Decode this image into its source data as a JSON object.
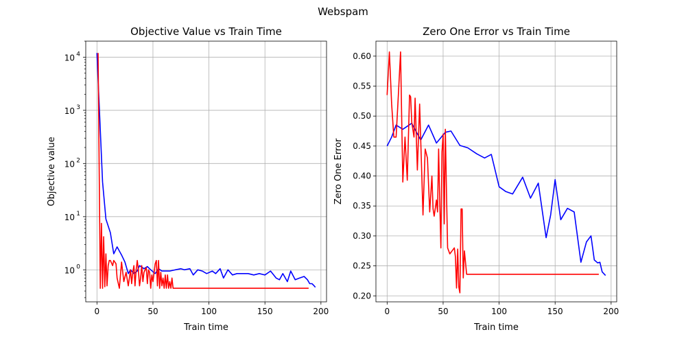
{
  "figure": {
    "title": "Webspam"
  },
  "chart_data": [
    {
      "type": "line",
      "title": "Objective Value vs Train Time",
      "xlabel": "Train time",
      "ylabel": "Objective value",
      "yscale": "log",
      "xlim": [
        -10,
        205
      ],
      "ylim": [
        0.25,
        20000
      ],
      "xticks": [
        0,
        50,
        100,
        150,
        200
      ],
      "xtick_labels": [
        "0",
        "50",
        "100",
        "150",
        "200"
      ],
      "yticks": [
        1,
        10,
        100,
        1000,
        10000
      ],
      "ytick_labels": [
        [
          "10",
          "0"
        ],
        [
          "10",
          "1"
        ],
        [
          "10",
          "2"
        ],
        [
          "10",
          "3"
        ],
        [
          "10",
          "4"
        ]
      ],
      "grid": true,
      "series": [
        {
          "color": "#0000ff",
          "x": [
            0,
            5,
            8,
            12,
            15,
            18,
            22,
            25,
            28,
            30,
            33,
            36,
            38,
            42,
            45,
            48,
            52,
            55,
            58,
            62,
            65,
            70,
            75,
            78,
            83,
            86,
            90,
            94,
            98,
            103,
            106,
            110,
            113,
            117,
            121,
            125,
            130,
            135,
            140,
            145,
            150,
            155,
            160,
            163,
            166,
            170,
            173,
            177,
            181,
            185,
            188,
            190,
            192,
            194,
            195
          ],
          "y": [
            12000,
            45,
            9,
            5,
            2,
            2.7,
            1.9,
            1.4,
            0.85,
            1.0,
            0.85,
            0.95,
            1.2,
            1.05,
            1.15,
            1.0,
            0.85,
            1.05,
            0.95,
            0.95,
            0.95,
            1.0,
            1.05,
            1.0,
            1.05,
            0.8,
            1.0,
            0.95,
            0.85,
            0.95,
            0.85,
            1.05,
            0.7,
            1.0,
            0.8,
            0.85,
            0.85,
            0.85,
            0.8,
            0.85,
            0.8,
            0.95,
            0.7,
            0.65,
            0.85,
            0.6,
            0.95,
            0.65,
            0.7,
            0.75,
            0.65,
            0.55,
            0.55,
            0.5,
            0.47
          ]
        },
        {
          "color": "#ff0000",
          "x": [
            1,
            3,
            4,
            5,
            6,
            7,
            8,
            9,
            10,
            11,
            12,
            14,
            15,
            17,
            18,
            20,
            22,
            24,
            26,
            28,
            30,
            31,
            32,
            33,
            34,
            35,
            36,
            37,
            38,
            39,
            40,
            41,
            42,
            44,
            45,
            46,
            47,
            48,
            49,
            50,
            52,
            53,
            54,
            55,
            56,
            57,
            58,
            59,
            60,
            61,
            62,
            63,
            64,
            65,
            66,
            67,
            68,
            70,
            80,
            100,
            130,
            160,
            189
          ],
          "y": [
            12000,
            0.45,
            7.5,
            0.45,
            4.2,
            0.48,
            2,
            0.5,
            1.2,
            1.5,
            1.5,
            1.2,
            1.5,
            1.3,
            0.7,
            0.45,
            1.4,
            0.6,
            0.9,
            0.5,
            1.0,
            0.55,
            0.9,
            1.2,
            0.5,
            1.0,
            1.5,
            1.0,
            0.5,
            0.7,
            1.2,
            0.6,
            0.9,
            1.1,
            0.55,
            1.0,
            0.9,
            0.45,
            0.8,
            0.6,
            1.3,
            1.5,
            0.5,
            1.5,
            0.45,
            0.9,
            0.5,
            0.7,
            0.45,
            0.8,
            0.45,
            0.8,
            0.45,
            0.6,
            0.45,
            0.7,
            0.45,
            0.45,
            0.45,
            0.45,
            0.45,
            0.45,
            0.45
          ]
        }
      ]
    },
    {
      "type": "line",
      "title": "Zero One Error vs Train Time",
      "xlabel": "Train time",
      "ylabel": "Zero One Error",
      "yscale": "linear",
      "xlim": [
        -10,
        205
      ],
      "ylim": [
        0.19,
        0.625
      ],
      "xticks": [
        0,
        50,
        100,
        150,
        200
      ],
      "xtick_labels": [
        "0",
        "50",
        "100",
        "150",
        "200"
      ],
      "yticks": [
        0.2,
        0.25,
        0.3,
        0.35,
        0.4,
        0.45,
        0.5,
        0.55,
        0.6
      ],
      "ytick_labels": [
        "0.20",
        "0.25",
        "0.30",
        "0.35",
        "0.40",
        "0.45",
        "0.50",
        "0.55",
        "0.60"
      ],
      "grid": true,
      "series": [
        {
          "color": "#0000ff",
          "x": [
            0,
            4,
            8,
            14,
            22,
            30,
            37,
            44,
            52,
            57,
            65,
            72,
            80,
            87,
            93,
            100,
            106,
            112,
            121,
            128,
            135,
            142,
            146,
            150,
            155,
            161,
            167,
            173,
            178,
            182,
            185,
            188,
            190,
            192,
            195
          ],
          "y": [
            0.45,
            0.465,
            0.485,
            0.478,
            0.488,
            0.46,
            0.485,
            0.455,
            0.473,
            0.475,
            0.451,
            0.447,
            0.437,
            0.43,
            0.436,
            0.382,
            0.374,
            0.37,
            0.398,
            0.363,
            0.388,
            0.297,
            0.335,
            0.394,
            0.327,
            0.346,
            0.34,
            0.256,
            0.29,
            0.3,
            0.26,
            0.255,
            0.256,
            0.24,
            0.234
          ]
        },
        {
          "color": "#ff0000",
          "x": [
            0,
            2,
            4,
            6,
            8,
            10,
            12,
            13,
            14,
            16,
            18,
            20,
            21,
            22,
            24,
            25,
            27,
            29,
            31,
            32,
            34,
            36,
            38,
            40,
            41,
            42,
            44,
            45,
            46,
            47,
            48,
            49,
            50,
            51,
            52,
            53,
            54,
            55,
            56,
            58,
            60,
            61,
            62,
            63,
            64,
            65,
            66,
            67,
            68,
            69,
            71,
            73,
            80,
            100,
            130,
            160,
            189
          ],
          "y": [
            0.535,
            0.607,
            0.52,
            0.465,
            0.465,
            0.535,
            0.607,
            0.5,
            0.39,
            0.465,
            0.393,
            0.535,
            0.532,
            0.49,
            0.465,
            0.53,
            0.41,
            0.52,
            0.4,
            0.335,
            0.445,
            0.43,
            0.34,
            0.4,
            0.345,
            0.333,
            0.36,
            0.34,
            0.445,
            0.355,
            0.28,
            0.44,
            0.47,
            0.32,
            0.478,
            0.37,
            0.28,
            0.275,
            0.27,
            0.275,
            0.28,
            0.265,
            0.213,
            0.278,
            0.215,
            0.205,
            0.345,
            0.345,
            0.23,
            0.275,
            0.236,
            0.236,
            0.236,
            0.236,
            0.236,
            0.236,
            0.236
          ]
        }
      ]
    }
  ]
}
